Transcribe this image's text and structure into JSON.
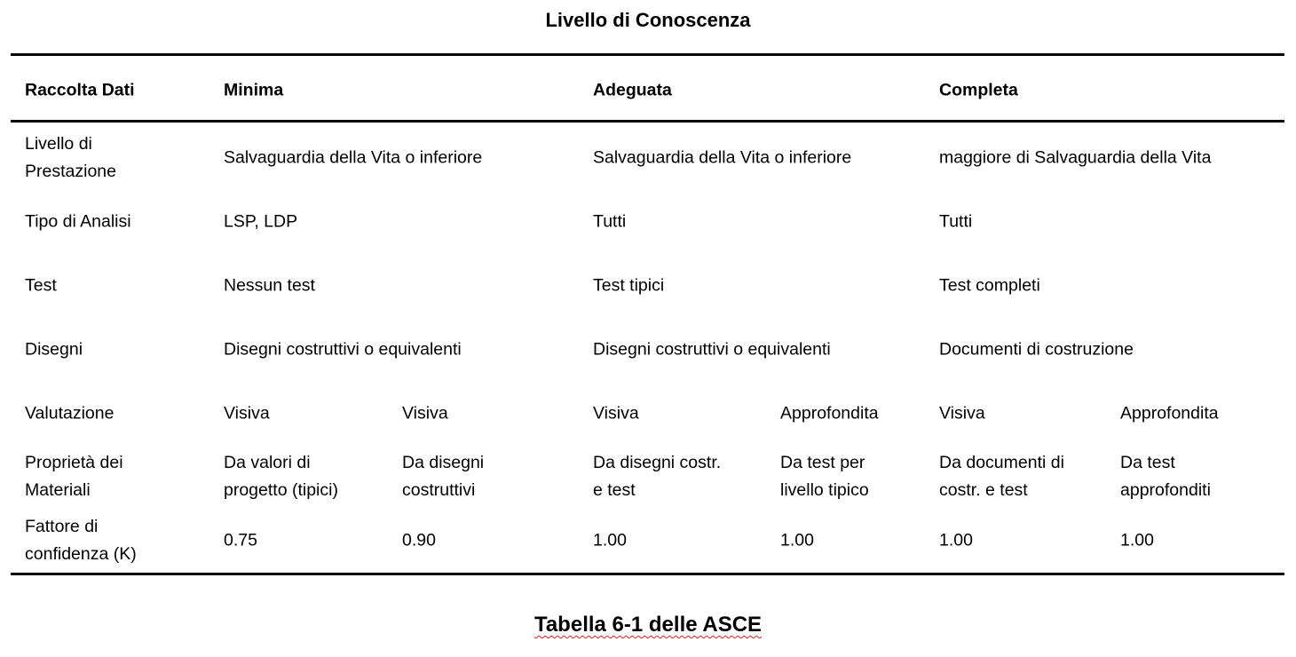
{
  "title": "Livello di Conoscenza",
  "header": [
    "Raccolta Dati",
    "Minima",
    "Adeguata",
    "Completa"
  ],
  "rows": [
    {
      "label": "Livello di\nPrestazione",
      "cells": [
        "Salvaguardia della Vita o inferiore",
        "Salvaguardia della Vita o inferiore",
        "maggiore di Salvaguardia della Vita"
      ]
    },
    {
      "label": "Tipo di Analisi",
      "cells": [
        "LSP, LDP",
        "Tutti",
        "Tutti"
      ]
    },
    {
      "label": "Test",
      "cells": [
        "Nessun test",
        "Test tipici",
        "Test completi"
      ]
    },
    {
      "label": "Disegni",
      "cells": [
        "Disegni costruttivi o equivalenti",
        "Disegni costruttivi o equivalenti",
        "Documenti di costruzione"
      ]
    },
    {
      "label": "Valutazione",
      "cells": [
        "Visiva",
        "Visiva",
        "Visiva",
        "Approfondita",
        "Visiva",
        "Approfondita"
      ]
    },
    {
      "label": "Proprietà dei\nMateriali",
      "cells": [
        "Da valori di\nprogetto (tipici)",
        "Da disegni\ncostruttivi",
        "Da disegni costr.\ne test",
        "Da test per\nlivello tipico",
        "Da documenti di\ncostr. e test",
        "Da test\napprofonditi"
      ]
    },
    {
      "label": "Fattore di\nconfidenza (K)",
      "cells": [
        "0.75",
        "0.90",
        "1.00",
        "1.00",
        "1.00",
        "1.00"
      ]
    }
  ],
  "caption": "Tabella 6-1 delle ASCE"
}
